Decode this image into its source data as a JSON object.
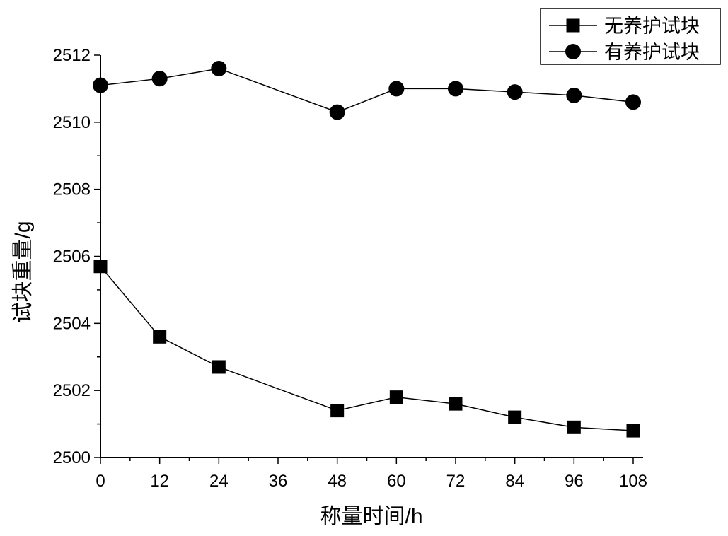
{
  "chart_data": {
    "type": "line",
    "title": "",
    "xlabel": "称量时间/h",
    "ylabel": "试块重量/g",
    "xlim": [
      0,
      108
    ],
    "ylim": [
      2500,
      2512
    ],
    "x_ticks": [
      0,
      12,
      24,
      36,
      48,
      60,
      72,
      84,
      96,
      108
    ],
    "y_ticks": [
      2500,
      2502,
      2504,
      2506,
      2508,
      2510,
      2512
    ],
    "grid": false,
    "legend_position": "top-right",
    "series": [
      {
        "name": "无养护试块",
        "marker": "square",
        "color": "#000000",
        "x": [
          0,
          12,
          24,
          48,
          60,
          72,
          84,
          96,
          108
        ],
        "y": [
          2505.7,
          2503.6,
          2502.7,
          2501.4,
          2501.8,
          2501.6,
          2501.2,
          2500.9,
          2500.8
        ]
      },
      {
        "name": "有养护试块",
        "marker": "circle",
        "color": "#000000",
        "x": [
          0,
          12,
          24,
          48,
          60,
          72,
          84,
          96,
          108
        ],
        "y": [
          2511.1,
          2511.3,
          2511.6,
          2510.3,
          2511.0,
          2511.0,
          2510.9,
          2510.8,
          2510.6
        ]
      }
    ]
  }
}
